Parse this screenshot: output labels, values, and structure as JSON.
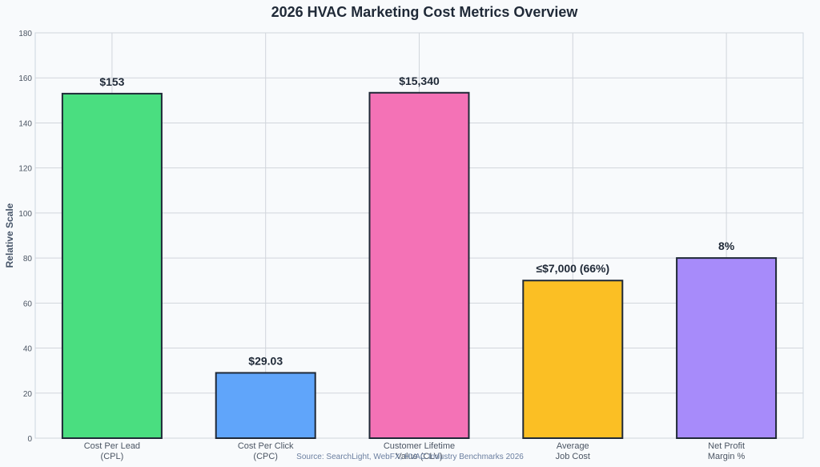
{
  "chart_data": {
    "type": "bar",
    "title": "2026 HVAC Marketing Cost Metrics Overview",
    "xlabel": "",
    "ylabel": "Relative Scale",
    "ylim": [
      0,
      180
    ],
    "yticks": [
      0,
      20,
      40,
      60,
      80,
      100,
      120,
      140,
      160,
      180
    ],
    "grid": true,
    "categories": [
      [
        "Cost Per Lead",
        "(CPL)"
      ],
      [
        "Cost Per Click",
        "(CPC)"
      ],
      [
        "Customer Lifetime",
        "Value (CLV)"
      ],
      [
        "Average",
        "Job Cost"
      ],
      [
        "Net Profit",
        "Margin %"
      ]
    ],
    "values": [
      153,
      29,
      153.4,
      70,
      80
    ],
    "data_labels": [
      "$153",
      "$29.03",
      "$15,340",
      "≤$7,000 (66%)",
      "8%"
    ],
    "colors": [
      "#4ade80",
      "#60a5fa",
      "#f472b6",
      "#fbbf24",
      "#a78bfa"
    ],
    "source": "Source: SearchLight, WebFX, HVAC Industry Benchmarks 2026"
  }
}
